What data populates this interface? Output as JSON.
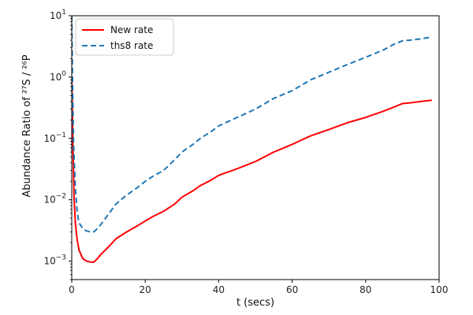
{
  "chart_data": {
    "type": "line",
    "xlabel": "t (secs)",
    "ylabel": "Abundance Ratio of ²⁷S / ²⁶P",
    "x_axis": {
      "lim": [
        0,
        100
      ],
      "ticks": [
        0,
        20,
        40,
        60,
        80,
        100
      ],
      "tick_labels": [
        "0",
        "20",
        "40",
        "60",
        "80",
        "100"
      ]
    },
    "y_axis": {
      "scale": "log",
      "lim": [
        0.0005,
        10
      ],
      "ticks": [
        0.001,
        0.01,
        0.1,
        1,
        10
      ],
      "tick_labels": [
        {
          "base": "10",
          "exp": "−3"
        },
        {
          "base": "10",
          "exp": "−2"
        },
        {
          "base": "10",
          "exp": "−1"
        },
        {
          "base": "10",
          "exp": "0"
        },
        {
          "base": "10",
          "exp": "1"
        }
      ]
    },
    "grid": false,
    "legend": "top-left",
    "series": [
      {
        "name": "New rate",
        "color": "#ff0000",
        "style": "solid",
        "x": [
          0,
          0.3,
          0.6,
          1,
          1.5,
          2,
          3,
          4,
          5,
          6,
          7,
          8,
          10,
          12,
          15,
          18,
          20,
          22,
          25,
          28,
          30,
          33,
          35,
          38,
          40,
          45,
          50,
          55,
          60,
          65,
          70,
          75,
          80,
          85,
          88,
          90,
          92,
          95,
          98
        ],
        "y": [
          0.9,
          0.1,
          0.012,
          0.004,
          0.0022,
          0.0015,
          0.0011,
          0.001,
          0.00097,
          0.00096,
          0.0011,
          0.0013,
          0.0017,
          0.0023,
          0.003,
          0.0038,
          0.0045,
          0.0053,
          0.0065,
          0.0085,
          0.011,
          0.014,
          0.017,
          0.021,
          0.025,
          0.032,
          0.042,
          0.06,
          0.08,
          0.11,
          0.14,
          0.18,
          0.22,
          0.28,
          0.33,
          0.37,
          0.38,
          0.4,
          0.42
        ]
      },
      {
        "name": "ths8 rate",
        "color": "#1f77b4",
        "style": "dashed",
        "x": [
          0,
          0.2,
          0.5,
          1,
          1.5,
          2,
          3,
          4,
          5,
          6,
          7,
          8,
          10,
          12,
          15,
          18,
          20,
          22,
          25,
          28,
          30,
          33,
          35,
          38,
          40,
          45,
          50,
          55,
          60,
          65,
          70,
          75,
          80,
          85,
          88,
          90,
          92,
          95,
          98
        ],
        "y": [
          10,
          1.0,
          0.08,
          0.015,
          0.006,
          0.0042,
          0.0034,
          0.0031,
          0.003,
          0.003,
          0.0034,
          0.004,
          0.0058,
          0.0085,
          0.012,
          0.016,
          0.02,
          0.024,
          0.03,
          0.045,
          0.06,
          0.08,
          0.1,
          0.13,
          0.16,
          0.22,
          0.3,
          0.45,
          0.6,
          0.9,
          1.2,
          1.6,
          2.1,
          2.8,
          3.5,
          3.9,
          4.0,
          4.2,
          4.5
        ]
      }
    ]
  }
}
